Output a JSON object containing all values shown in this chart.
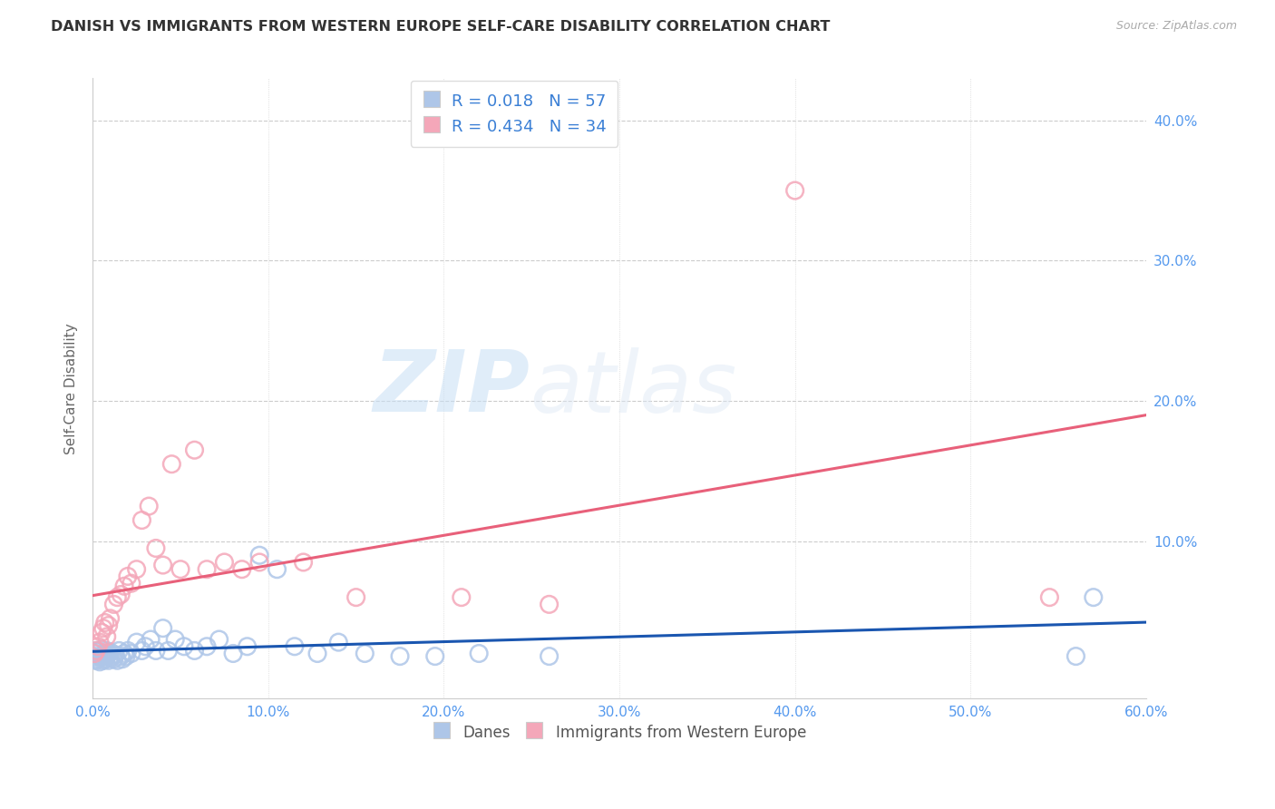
{
  "title": "DANISH VS IMMIGRANTS FROM WESTERN EUROPE SELF-CARE DISABILITY CORRELATION CHART",
  "source": "Source: ZipAtlas.com",
  "ylabel": "Self-Care Disability",
  "xlim": [
    0.0,
    0.6
  ],
  "ylim": [
    -0.012,
    0.43
  ],
  "xticks": [
    0.0,
    0.1,
    0.2,
    0.3,
    0.4,
    0.5,
    0.6
  ],
  "yticks": [
    0.1,
    0.2,
    0.3,
    0.4
  ],
  "ytick_labels": [
    "10.0%",
    "20.0%",
    "30.0%",
    "40.0%"
  ],
  "xtick_labels": [
    "0.0%",
    "10.0%",
    "20.0%",
    "30.0%",
    "40.0%",
    "50.0%",
    "60.0%"
  ],
  "danes_R": 0.018,
  "danes_N": 57,
  "immigrants_R": 0.434,
  "immigrants_N": 34,
  "danes_color": "#aec6e8",
  "immigrants_color": "#f4a7b9",
  "danes_line_color": "#1a56b0",
  "immigrants_line_color": "#e8607a",
  "danes_x": [
    0.001,
    0.001,
    0.002,
    0.002,
    0.003,
    0.003,
    0.004,
    0.004,
    0.005,
    0.005,
    0.006,
    0.006,
    0.007,
    0.007,
    0.008,
    0.008,
    0.009,
    0.009,
    0.01,
    0.01,
    0.011,
    0.012,
    0.013,
    0.014,
    0.015,
    0.016,
    0.017,
    0.018,
    0.019,
    0.02,
    0.022,
    0.025,
    0.028,
    0.03,
    0.033,
    0.036,
    0.04,
    0.043,
    0.047,
    0.052,
    0.058,
    0.065,
    0.072,
    0.08,
    0.088,
    0.095,
    0.105,
    0.115,
    0.128,
    0.14,
    0.155,
    0.175,
    0.195,
    0.22,
    0.26,
    0.56,
    0.57
  ],
  "danes_y": [
    0.02,
    0.018,
    0.015,
    0.022,
    0.016,
    0.021,
    0.018,
    0.014,
    0.017,
    0.023,
    0.019,
    0.015,
    0.02,
    0.016,
    0.018,
    0.022,
    0.015,
    0.02,
    0.017,
    0.021,
    0.018,
    0.016,
    0.019,
    0.015,
    0.022,
    0.018,
    0.016,
    0.02,
    0.018,
    0.022,
    0.02,
    0.028,
    0.022,
    0.025,
    0.03,
    0.022,
    0.038,
    0.022,
    0.03,
    0.025,
    0.022,
    0.025,
    0.03,
    0.02,
    0.025,
    0.09,
    0.08,
    0.025,
    0.02,
    0.028,
    0.02,
    0.018,
    0.018,
    0.02,
    0.018,
    0.018,
    0.06
  ],
  "immigrants_x": [
    0.001,
    0.002,
    0.003,
    0.004,
    0.005,
    0.006,
    0.007,
    0.008,
    0.009,
    0.01,
    0.012,
    0.014,
    0.016,
    0.018,
    0.02,
    0.022,
    0.025,
    0.028,
    0.032,
    0.036,
    0.04,
    0.045,
    0.05,
    0.058,
    0.065,
    0.075,
    0.085,
    0.095,
    0.12,
    0.15,
    0.21,
    0.26,
    0.4,
    0.545
  ],
  "immigrants_y": [
    0.02,
    0.022,
    0.025,
    0.028,
    0.035,
    0.038,
    0.042,
    0.032,
    0.04,
    0.045,
    0.055,
    0.06,
    0.062,
    0.068,
    0.075,
    0.07,
    0.08,
    0.115,
    0.125,
    0.095,
    0.083,
    0.155,
    0.08,
    0.165,
    0.08,
    0.085,
    0.08,
    0.085,
    0.085,
    0.06,
    0.06,
    0.055,
    0.35,
    0.06
  ],
  "watermark_zip": "ZIP",
  "watermark_atlas": "atlas",
  "background_color": "#ffffff",
  "grid_color": "#cccccc",
  "legend_text_color": "#3a7fd5",
  "tick_color": "#5599ee",
  "axis_label_color": "#666666"
}
